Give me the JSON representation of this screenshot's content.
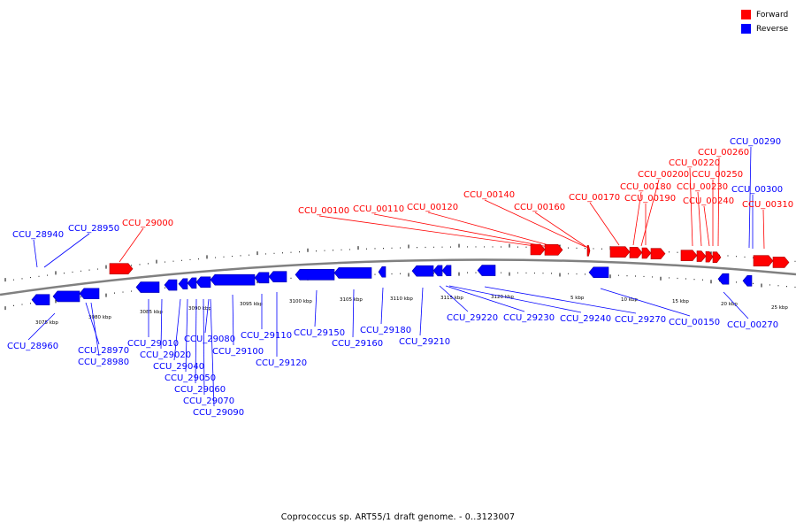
{
  "legend": {
    "forward_label": "Forward",
    "reverse_label": "Reverse",
    "forward_color": "#ff0000",
    "reverse_color": "#0000ff"
  },
  "caption": "Coprococcus sp. ART55/1 draft genome. - 0..3123007",
  "colors": {
    "forward": "#ff0000",
    "reverse": "#0000ff",
    "backbone": "#808080",
    "tick": "#000000"
  },
  "scale_labels": [
    "3075 kbp",
    "3080 kbp",
    "3085 kbp",
    "3090 kbp",
    "3095 kbp",
    "3100 kbp",
    "3105 kbp",
    "3110 kbp",
    "3115 kbp",
    "3120 kbp",
    "5 kbp",
    "10 kbp",
    "15 kbp",
    "20 kbp",
    "25 kbp"
  ],
  "genes": [
    {
      "name": "CCU_28940",
      "strand": "reverse"
    },
    {
      "name": "CCU_28950",
      "strand": "reverse"
    },
    {
      "name": "CCU_29000",
      "strand": "forward"
    },
    {
      "name": "CCU_28960",
      "strand": "reverse"
    },
    {
      "name": "CCU_28970",
      "strand": "reverse"
    },
    {
      "name": "CCU_28980",
      "strand": "reverse"
    },
    {
      "name": "CCU_29010",
      "strand": "reverse"
    },
    {
      "name": "CCU_29020",
      "strand": "reverse"
    },
    {
      "name": "CCU_29040",
      "strand": "reverse"
    },
    {
      "name": "CCU_29050",
      "strand": "reverse"
    },
    {
      "name": "CCU_29060",
      "strand": "reverse"
    },
    {
      "name": "CCU_29070",
      "strand": "reverse"
    },
    {
      "name": "CCU_29080",
      "strand": "reverse"
    },
    {
      "name": "CCU_29090",
      "strand": "reverse"
    },
    {
      "name": "CCU_29100",
      "strand": "reverse"
    },
    {
      "name": "CCU_29110",
      "strand": "reverse"
    },
    {
      "name": "CCU_29120",
      "strand": "reverse"
    },
    {
      "name": "CCU_29150",
      "strand": "reverse"
    },
    {
      "name": "CCU_29160",
      "strand": "reverse"
    },
    {
      "name": "CCU_29180",
      "strand": "reverse"
    },
    {
      "name": "CCU_29210",
      "strand": "reverse"
    },
    {
      "name": "CCU_29220",
      "strand": "reverse"
    },
    {
      "name": "CCU_29230",
      "strand": "reverse"
    },
    {
      "name": "CCU_29240",
      "strand": "reverse"
    },
    {
      "name": "CCU_29270",
      "strand": "reverse"
    },
    {
      "name": "CCU_00150",
      "strand": "reverse"
    },
    {
      "name": "CCU_00270",
      "strand": "reverse"
    },
    {
      "name": "CCU_00100",
      "strand": "forward"
    },
    {
      "name": "CCU_00110",
      "strand": "forward"
    },
    {
      "name": "CCU_00120",
      "strand": "forward"
    },
    {
      "name": "CCU_00140",
      "strand": "forward"
    },
    {
      "name": "CCU_00160",
      "strand": "forward"
    },
    {
      "name": "CCU_00170",
      "strand": "forward"
    },
    {
      "name": "CCU_00180",
      "strand": "forward"
    },
    {
      "name": "CCU_00190",
      "strand": "forward"
    },
    {
      "name": "CCU_00200",
      "strand": "forward"
    },
    {
      "name": "CCU_00220",
      "strand": "forward"
    },
    {
      "name": "CCU_00230",
      "strand": "forward"
    },
    {
      "name": "CCU_00240",
      "strand": "forward"
    },
    {
      "name": "CCU_00250",
      "strand": "forward"
    },
    {
      "name": "CCU_00260",
      "strand": "forward"
    },
    {
      "name": "CCU_00290",
      "strand": "reverse"
    },
    {
      "name": "CCU_00300",
      "strand": "reverse"
    },
    {
      "name": "CCU_00310",
      "strand": "forward"
    }
  ]
}
